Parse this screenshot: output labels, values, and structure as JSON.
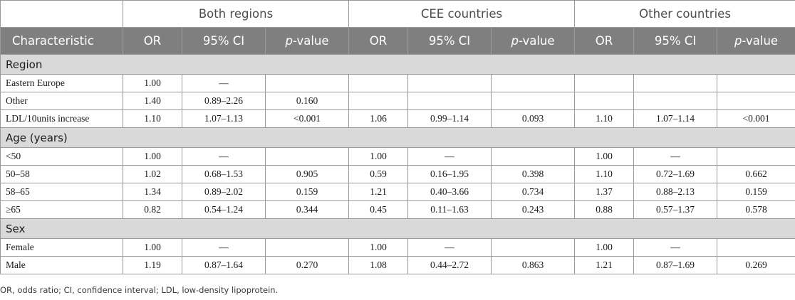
{
  "table": {
    "group_headers": [
      "Both regions",
      "CEE countries",
      "Other countries"
    ],
    "first_column_header": "Characteristic",
    "sub_headers": [
      {
        "prefix": "OR",
        "italic": "",
        "suffix": ""
      },
      {
        "prefix": "95% CI",
        "italic": "",
        "suffix": ""
      },
      {
        "prefix": "",
        "italic": "p",
        "suffix": "-value"
      }
    ],
    "sections": [
      {
        "title": "Region",
        "rows": [
          {
            "label": "Eastern Europe",
            "cells": [
              "1.00",
              "—",
              "",
              "",
              "",
              "",
              "",
              "",
              ""
            ]
          },
          {
            "label": "Other",
            "cells": [
              "1.40",
              "0.89–2.26",
              "0.160",
              "",
              "",
              "",
              "",
              "",
              ""
            ]
          },
          {
            "label": "LDL/10units increase",
            "cells": [
              "1.10",
              "1.07–1.13",
              "<0.001",
              "1.06",
              "0.99–1.14",
              "0.093",
              "1.10",
              "1.07–1.14",
              "<0.001"
            ]
          }
        ]
      },
      {
        "title": "Age (years)",
        "rows": [
          {
            "label": "<50",
            "cells": [
              "1.00",
              "—",
              "",
              "1.00",
              "—",
              "",
              "1.00",
              "—",
              ""
            ]
          },
          {
            "label": "50–58",
            "cells": [
              "1.02",
              "0.68–1.53",
              "0.905",
              "0.59",
              "0.16–1.95",
              "0.398",
              "1.10",
              "0.72–1.69",
              "0.662"
            ]
          },
          {
            "label": "58–65",
            "cells": [
              "1.34",
              "0.89–2.02",
              "0.159",
              "1.21",
              "0.40–3.66",
              "0.734",
              "1.37",
              "0.88–2.13",
              "0.159"
            ]
          },
          {
            "label": "≥65",
            "cells": [
              "0.82",
              "0.54–1.24",
              "0.344",
              "0.45",
              "0.11–1.63",
              "0.243",
              "0.88",
              "0.57–1.37",
              "0.578"
            ]
          }
        ]
      },
      {
        "title": "Sex",
        "rows": [
          {
            "label": "Female",
            "cells": [
              "1.00",
              "—",
              "",
              "1.00",
              "—",
              "",
              "1.00",
              "—",
              ""
            ]
          },
          {
            "label": "Male",
            "cells": [
              "1.19",
              "0.87–1.64",
              "0.270",
              "1.08",
              "0.44–2.72",
              "0.863",
              "1.21",
              "0.87–1.69",
              "0.269"
            ]
          }
        ]
      }
    ]
  },
  "footnote": "OR, odds ratio; CI, confidence interval; LDL, low-density lipoprotein."
}
